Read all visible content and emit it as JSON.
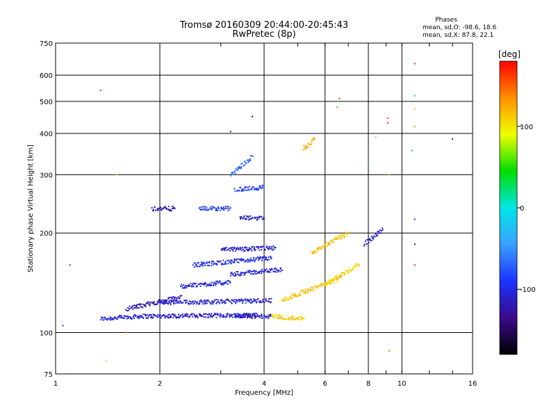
{
  "title_line1": "Tromsø 20160309 20:44:00-20:45:43",
  "title_line2": "RwPretec (8p)",
  "phases_box": {
    "heading": "Phases",
    "line_o": "mean, sd,O: -98.6, 18.6",
    "line_x": "mean, sd,X:  87.8, 22.1"
  },
  "colorbar": {
    "label": "[deg]",
    "tick_labels": [
      "100",
      "0",
      "-100"
    ],
    "tick_values": [
      100,
      0,
      -100
    ],
    "range": [
      -180,
      180
    ],
    "stops": [
      "#000000",
      "#3a0a8a",
      "#1b33ff",
      "#3aa0ff",
      "#00e6e6",
      "#00dd00",
      "#f0ff00",
      "#ff9000",
      "#ff0000"
    ]
  },
  "chart_data": {
    "type": "scatter",
    "title": "Tromsø 20160309 20:44:00-20:45:43",
    "subtitle": "RwPretec (8p)",
    "xlabel": "Frequency [MHz]",
    "ylabel": "Stationary phase Virtual Height [km]",
    "xscale": "log",
    "yscale": "log",
    "xlim": [
      1,
      16
    ],
    "ylim": [
      75,
      750
    ],
    "x_ticks": [
      1,
      2,
      4,
      6,
      8,
      10,
      16
    ],
    "x_tick_labels": [
      "1",
      "2",
      "4",
      "6",
      "8",
      "10",
      "16"
    ],
    "y_ticks": [
      75,
      100,
      200,
      300,
      400,
      500,
      600,
      750
    ],
    "y_tick_labels": [
      "75",
      "100",
      "200",
      "300",
      "400",
      "500",
      "600",
      "750"
    ],
    "grid": true,
    "color_encoding": "phase [deg]",
    "traces": [
      {
        "f_start": 1.35,
        "f_end": 1.75,
        "h_start": 110,
        "h_end": 112,
        "phase": -105
      },
      {
        "f_start": 1.75,
        "f_end": 3.8,
        "h_start": 112,
        "h_end": 113,
        "phase": -110
      },
      {
        "f_start": 3.3,
        "f_end": 4.2,
        "h_start": 112,
        "h_end": 112,
        "phase": -115
      },
      {
        "f_start": 2.0,
        "f_end": 4.2,
        "h_start": 123,
        "h_end": 125,
        "phase": -105
      },
      {
        "f_start": 1.6,
        "f_end": 2.3,
        "h_start": 118,
        "h_end": 128,
        "phase": -120
      },
      {
        "f_start": 2.3,
        "f_end": 3.2,
        "h_start": 138,
        "h_end": 142,
        "phase": -100
      },
      {
        "f_start": 2.5,
        "f_end": 4.2,
        "h_start": 160,
        "h_end": 168,
        "phase": -100
      },
      {
        "f_start": 3.0,
        "f_end": 4.3,
        "h_start": 178,
        "h_end": 180,
        "phase": -110
      },
      {
        "f_start": 3.2,
        "f_end": 4.5,
        "h_start": 150,
        "h_end": 155,
        "phase": -105
      },
      {
        "f_start": 3.3,
        "f_end": 4.0,
        "h_start": 270,
        "h_end": 275,
        "phase": -90
      },
      {
        "f_start": 3.4,
        "f_end": 4.0,
        "h_start": 222,
        "h_end": 222,
        "phase": -110
      },
      {
        "f_start": 1.9,
        "f_end": 2.2,
        "h_start": 237,
        "h_end": 237,
        "phase": -120
      },
      {
        "f_start": 2.6,
        "f_end": 3.2,
        "h_start": 237,
        "h_end": 237,
        "phase": -85
      },
      {
        "f_start": 4.2,
        "f_end": 5.2,
        "h_start": 112,
        "h_end": 110,
        "phase": 110
      },
      {
        "f_start": 4.5,
        "f_end": 6.5,
        "h_start": 125,
        "h_end": 145,
        "phase": 115
      },
      {
        "f_start": 5.5,
        "f_end": 7.0,
        "h_start": 175,
        "h_end": 200,
        "phase": 115
      },
      {
        "f_start": 6.0,
        "f_end": 7.5,
        "h_start": 140,
        "h_end": 160,
        "phase": 110
      },
      {
        "f_start": 7.8,
        "f_end": 8.8,
        "h_start": 185,
        "h_end": 205,
        "phase": -110
      },
      {
        "f_start": 3.2,
        "f_end": 3.7,
        "h_start": 300,
        "h_end": 340,
        "phase": -70
      },
      {
        "f_start": 5.2,
        "f_end": 5.6,
        "h_start": 360,
        "h_end": 385,
        "phase": 120
      }
    ],
    "isolated_points": [
      {
        "f": 1.05,
        "h": 105,
        "phase": -110
      },
      {
        "f": 1.1,
        "h": 160,
        "phase": -90
      },
      {
        "f": 1.1,
        "h": 75,
        "phase": -80
      },
      {
        "f": 1.35,
        "h": 540,
        "phase": 160
      },
      {
        "f": 1.5,
        "h": 300,
        "phase": 110
      },
      {
        "f": 1.4,
        "h": 82,
        "phase": 110
      },
      {
        "f": 1.6,
        "h": 100,
        "phase": 140
      },
      {
        "f": 3.2,
        "h": 405,
        "phase": -140
      },
      {
        "f": 3.7,
        "h": 450,
        "phase": -150
      },
      {
        "f": 6.6,
        "h": 510,
        "phase": 170
      },
      {
        "f": 6.5,
        "h": 480,
        "phase": 40
      },
      {
        "f": 9.1,
        "h": 445,
        "phase": 170
      },
      {
        "f": 9.1,
        "h": 430,
        "phase": 170
      },
      {
        "f": 10.9,
        "h": 650,
        "phase": 170
      },
      {
        "f": 10.9,
        "h": 520,
        "phase": 20
      },
      {
        "f": 10.9,
        "h": 475,
        "phase": 120
      },
      {
        "f": 10.9,
        "h": 420,
        "phase": 60
      },
      {
        "f": 10.7,
        "h": 355,
        "phase": 40
      },
      {
        "f": 10.9,
        "h": 220,
        "phase": -100
      },
      {
        "f": 10.9,
        "h": 185,
        "phase": -150
      },
      {
        "f": 10.9,
        "h": 160,
        "phase": 170
      },
      {
        "f": 14.0,
        "h": 385,
        "phase": -150
      },
      {
        "f": 8.4,
        "h": 390,
        "phase": 120
      },
      {
        "f": 8.0,
        "h": 320,
        "phase": 30
      },
      {
        "f": 9.2,
        "h": 300,
        "phase": 130
      },
      {
        "f": 9.2,
        "h": 88,
        "phase": 140
      }
    ]
  }
}
